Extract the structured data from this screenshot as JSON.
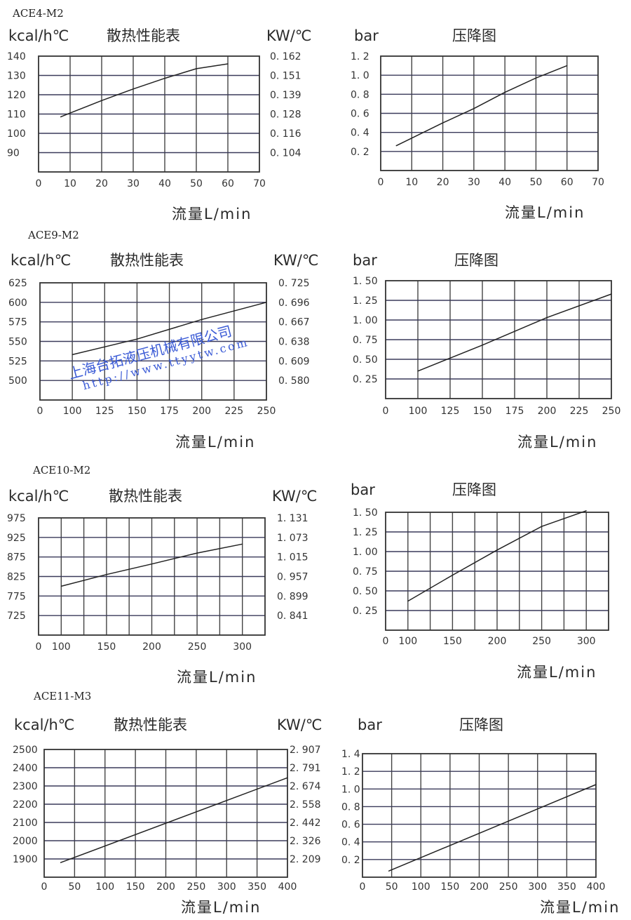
{
  "watermark": {
    "company": "上海台拓液压机械有限公司",
    "url": "http://www.ttyytw.com",
    "color": "#3b5bd6"
  },
  "colors": {
    "line": "#222222",
    "grid_vertical": "#444444",
    "grid_horizontal": "#3a3a5a"
  },
  "chart_data": [
    {
      "model": "ACE4-M2",
      "type": "line",
      "title": "散热性能表",
      "ylabel": "kcal/h℃",
      "ylabel_right": "KW/℃",
      "xlabel": "流量L/min",
      "xlim": [
        0,
        70
      ],
      "ylim": [
        80,
        140
      ],
      "grid": true,
      "x_ticks": [
        0,
        10,
        20,
        30,
        40,
        50,
        60,
        70
      ],
      "y_ticks": [
        90,
        100,
        110,
        120,
        130,
        140
      ],
      "right_labels": [
        "0. 104",
        "0. 116",
        "0. 128",
        "0. 139",
        "0. 151",
        "0. 162"
      ],
      "points": [
        [
          7,
          108.5
        ],
        [
          10,
          110.5
        ],
        [
          20,
          117
        ],
        [
          30,
          123
        ],
        [
          40,
          128.5
        ],
        [
          50,
          133.5
        ],
        [
          60,
          136
        ]
      ]
    },
    {
      "type": "line",
      "title": "压降图",
      "ylabel": "bar",
      "xlabel": "流量L/min",
      "xlim": [
        0,
        70
      ],
      "ylim": [
        0,
        1.2
      ],
      "grid": true,
      "x_ticks": [
        0,
        10,
        20,
        30,
        40,
        50,
        60,
        70
      ],
      "y_ticks": [
        0.2,
        0.4,
        0.6,
        0.8,
        1.0,
        1.2
      ],
      "y_tick_labels": [
        "0. 2",
        "0. 4",
        "0. 6",
        "0. 8",
        "1. 0",
        "1. 2"
      ],
      "points": [
        [
          5,
          0.26
        ],
        [
          10,
          0.34
        ],
        [
          20,
          0.5
        ],
        [
          30,
          0.65
        ],
        [
          40,
          0.82
        ],
        [
          50,
          0.97
        ],
        [
          60,
          1.1
        ]
      ]
    },
    {
      "model": "ACE9-M2",
      "type": "line",
      "title": "散热性能表",
      "ylabel": "kcal/h℃",
      "ylabel_right": "KW/℃",
      "xlabel": "流量L/min",
      "xlim": [
        75,
        250
      ],
      "x_origin_label": "0",
      "ylim": [
        475,
        625
      ],
      "grid": true,
      "x_ticks": [
        100,
        125,
        150,
        175,
        200,
        225,
        250
      ],
      "y_ticks": [
        500,
        525,
        550,
        575,
        600,
        625
      ],
      "right_labels": [
        "0. 580",
        "0. 609",
        "0. 638",
        "0. 667",
        "0. 696",
        "0. 725"
      ],
      "points": [
        [
          100,
          533
        ],
        [
          150,
          553
        ],
        [
          200,
          578
        ],
        [
          250,
          600
        ]
      ]
    },
    {
      "type": "line",
      "title": "压降图",
      "ylabel": "bar",
      "xlabel": "流量L/min",
      "xlim": [
        75,
        250
      ],
      "x_origin_label": "0",
      "ylim": [
        0,
        1.5
      ],
      "grid": true,
      "x_ticks": [
        100,
        125,
        150,
        175,
        200,
        225,
        250
      ],
      "y_ticks": [
        0.25,
        0.5,
        0.75,
        1.0,
        1.25,
        1.5
      ],
      "y_tick_labels": [
        "0. 25",
        "0. 50",
        "0. 75",
        "1. 00",
        "1. 25",
        "1. 50"
      ],
      "points": [
        [
          100,
          0.35
        ],
        [
          150,
          0.68
        ],
        [
          200,
          1.03
        ],
        [
          250,
          1.33
        ]
      ]
    },
    {
      "model": "ACE10-M2",
      "type": "line",
      "title": "散热性能表",
      "ylabel": "kcal/h℃",
      "ylabel_right": "KW/℃",
      "xlabel": "流量L/min",
      "xlim": [
        75,
        325
      ],
      "x_origin_label": "0",
      "ylim": [
        675,
        975
      ],
      "grid": true,
      "x_ticks": [
        100,
        150,
        200,
        250,
        300
      ],
      "x_grid": [
        100,
        125,
        150,
        175,
        200,
        225,
        250,
        275,
        300
      ],
      "y_ticks": [
        725,
        775,
        825,
        875,
        925,
        975
      ],
      "right_labels": [
        "0. 841",
        "0. 899",
        "0. 957",
        "1. 015",
        "1. 073",
        "1. 131"
      ],
      "points": [
        [
          100,
          800
        ],
        [
          150,
          830
        ],
        [
          200,
          857
        ],
        [
          250,
          885
        ],
        [
          300,
          908
        ]
      ]
    },
    {
      "type": "line",
      "title": "压降图",
      "ylabel": "bar",
      "xlabel": "流量L/min",
      "xlim": [
        75,
        325
      ],
      "x_origin_label": "0",
      "ylim": [
        0,
        1.5
      ],
      "grid": true,
      "x_ticks": [
        100,
        150,
        200,
        250,
        300
      ],
      "x_grid": [
        100,
        125,
        150,
        175,
        200,
        225,
        250,
        275,
        300
      ],
      "y_ticks": [
        0.25,
        0.5,
        0.75,
        1.0,
        1.25,
        1.5
      ],
      "y_tick_labels": [
        "0. 25",
        "0. 50",
        "0. 75",
        "1. 00",
        "1. 25",
        "1. 50"
      ],
      "points": [
        [
          100,
          0.37
        ],
        [
          150,
          0.7
        ],
        [
          200,
          1.02
        ],
        [
          250,
          1.32
        ],
        [
          300,
          1.52
        ]
      ]
    },
    {
      "model": "ACE11-M3",
      "type": "line",
      "title": "散热性能表",
      "ylabel": "kcal/h℃",
      "ylabel_right": "KW/℃",
      "xlabel": "流量L/min",
      "xlim": [
        0,
        400
      ],
      "ylim": [
        1800,
        2500
      ],
      "grid": true,
      "x_ticks": [
        0,
        50,
        100,
        150,
        200,
        250,
        300,
        350,
        400
      ],
      "y_ticks": [
        1900,
        2000,
        2100,
        2200,
        2300,
        2400,
        2500
      ],
      "right_labels": [
        "2. 209",
        "2. 326",
        "2. 442",
        "2. 558",
        "2. 674",
        "2. 791",
        "2. 907"
      ],
      "points": [
        [
          27,
          1880
        ],
        [
          400,
          2345
        ]
      ]
    },
    {
      "type": "line",
      "title": "压降图",
      "ylabel": "bar",
      "xlabel": "流量L/min",
      "xlim": [
        0,
        400
      ],
      "ylim": [
        0,
        1.4
      ],
      "grid": true,
      "x_ticks": [
        0,
        50,
        100,
        150,
        200,
        250,
        300,
        350,
        400
      ],
      "y_ticks": [
        0.2,
        0.4,
        0.6,
        0.8,
        1.0,
        1.2,
        1.4
      ],
      "y_tick_labels": [
        "0. 2",
        "0. 4",
        "0. 6",
        "0. 8",
        "1. 0",
        "1. 2",
        "1. 4"
      ],
      "points": [
        [
          45,
          0.07
        ],
        [
          400,
          1.05
        ]
      ]
    }
  ]
}
